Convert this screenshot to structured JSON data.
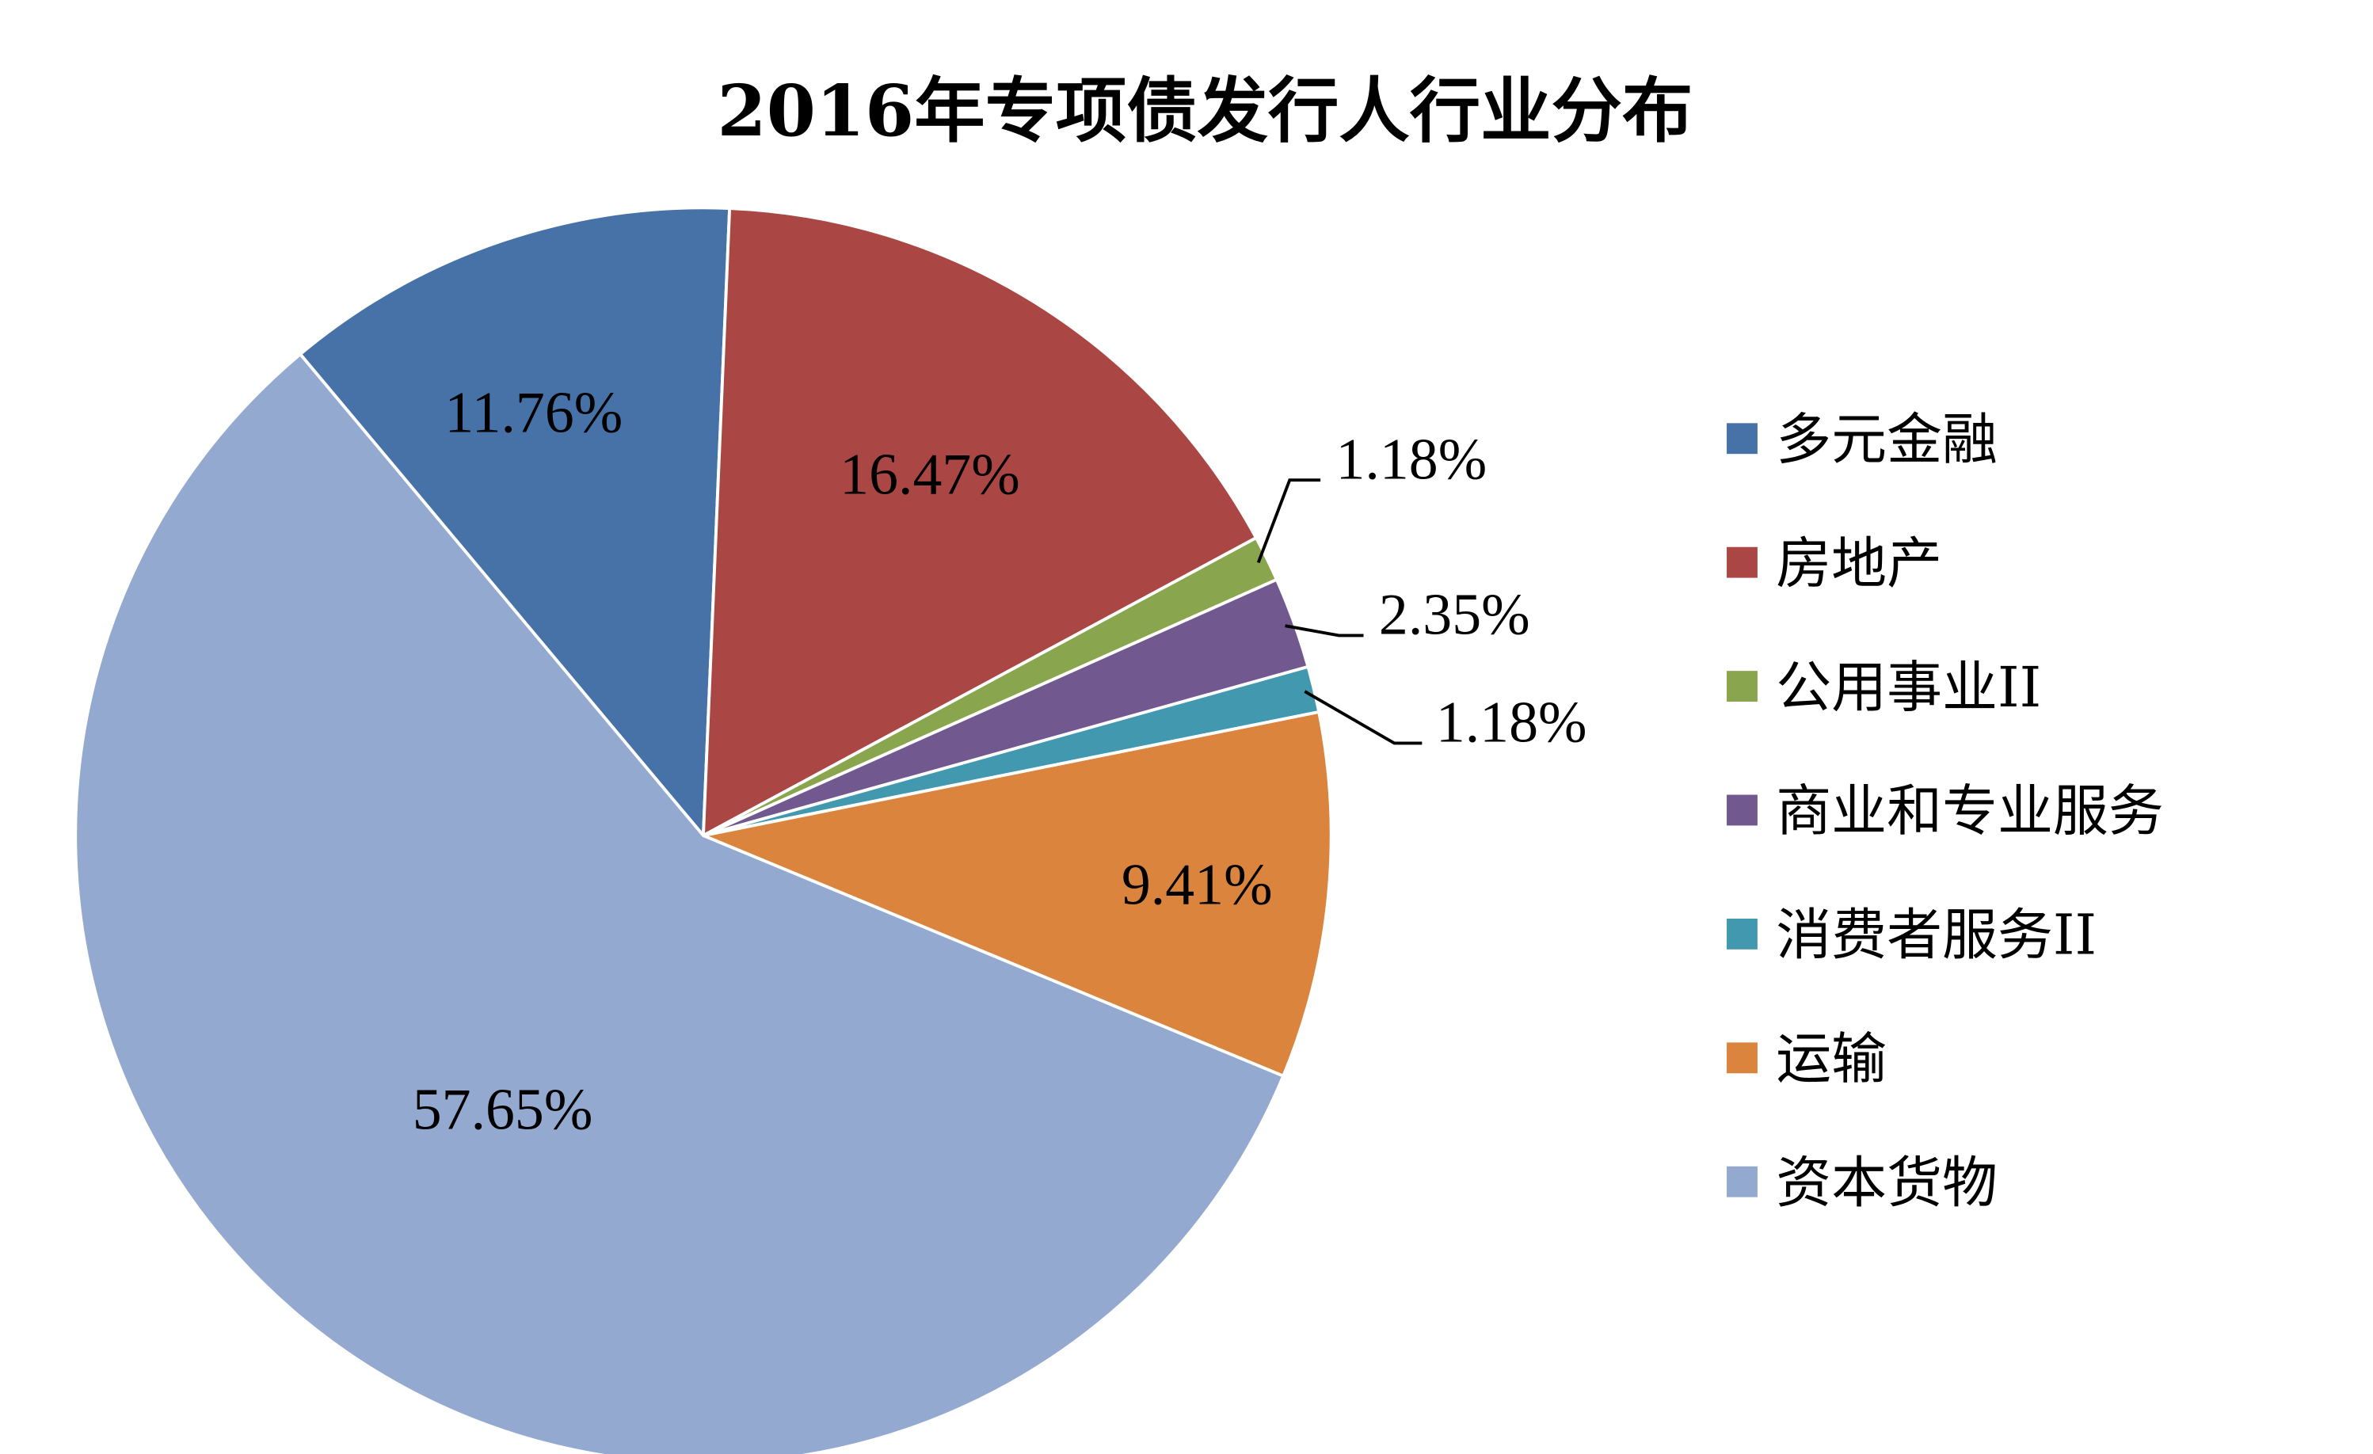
{
  "chart_data": {
    "type": "pie",
    "title": "2016年专项债发行人行业分布",
    "categories": [
      "多元金融",
      "房地产",
      "公用事业II",
      "商业和专业服务",
      "消费者服务II",
      "运输",
      "资本货物"
    ],
    "values": [
      11.76,
      16.47,
      1.18,
      2.35,
      1.18,
      9.41,
      57.65
    ],
    "value_labels": [
      "11.76%",
      "16.47%",
      "1.18%",
      "2.35%",
      "1.18%",
      "9.41%",
      "57.65%"
    ],
    "colors": [
      "#4672A8",
      "#AA4744",
      "#89A54E",
      "#71588F",
      "#4298AF",
      "#DB843D",
      "#93A9CF"
    ],
    "legend_position": "right",
    "start_angle": "12 o'clock, clockwise from 多元金融 counter-clockwise placement"
  }
}
